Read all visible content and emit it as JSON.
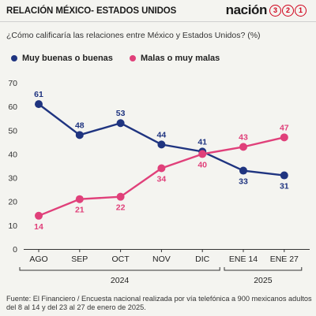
{
  "header": {
    "title": "RELACIÓN MÉXICO- ESTADOS UNIDOS",
    "logo_word": "nación",
    "logo_digits": [
      "3",
      "2",
      "1"
    ]
  },
  "subtitle": "¿Cómo calificaría las relaciones entre México y Estados Unidos? (%)",
  "legend": {
    "good_label": "Muy buenas o buenas",
    "bad_label": "Malas o muy malas"
  },
  "colors": {
    "good": "#1f3480",
    "bad": "#e0407a",
    "accent": "#d0021b"
  },
  "chart_data": {
    "type": "line",
    "categories": [
      "AGO",
      "SEP",
      "OCT",
      "NOV",
      "DIC",
      "ENE 14",
      "ENE 27"
    ],
    "years": [
      {
        "label": "2024",
        "span": [
          "AGO",
          "DIC"
        ]
      },
      {
        "label": "2025",
        "span": [
          "ENE 14",
          "ENE 27"
        ]
      }
    ],
    "series": [
      {
        "name": "Muy buenas o buenas",
        "color": "#1f3480",
        "values": [
          61,
          48,
          53,
          44,
          41,
          33,
          31
        ]
      },
      {
        "name": "Malas o muy malas",
        "color": "#e0407a",
        "values": [
          14,
          21,
          22,
          34,
          40,
          43,
          47
        ]
      }
    ],
    "yticks": [
      0,
      10,
      20,
      30,
      40,
      50,
      60,
      70
    ],
    "ylim": [
      0,
      70
    ],
    "grid": false,
    "legend_position": "top"
  },
  "source": "Fuente: El Financiero / Encuesta nacional realizada por vía telefónica a 900 mexicanos adultos del 8 al 14 y del 23 al 27 de enero de 2025."
}
